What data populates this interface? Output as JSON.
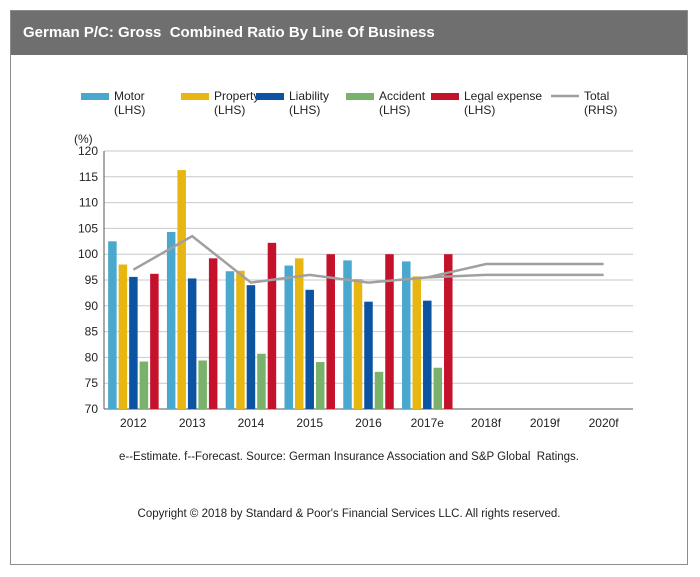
{
  "header": {
    "title": "German P/C: Gross  Combined Ratio By Line Of Business"
  },
  "colors": {
    "header_bg": "#6f6f6f",
    "motor": "#4aa8cf",
    "property": "#e8b611",
    "liability": "#0c54a2",
    "accident": "#79b26a",
    "legal": "#c4112c",
    "total": "#a0a0a0"
  },
  "chart_data": {
    "type": "bar",
    "ylabel": "(%)",
    "ylim": [
      70,
      120
    ],
    "yticks": [
      70,
      75,
      80,
      85,
      90,
      95,
      100,
      105,
      110,
      115,
      120
    ],
    "grid": true,
    "legend_position": "top",
    "categories": [
      "2012",
      "2013",
      "2014",
      "2015",
      "2016",
      "2017e",
      "2018f",
      "2019f",
      "2020f"
    ],
    "series": [
      {
        "name": "Motor",
        "axis": "(LHS)",
        "type": "bar",
        "color": "#4aa8cf",
        "values": [
          102.5,
          104.3,
          96.7,
          97.8,
          98.8,
          98.6,
          null,
          null,
          null
        ]
      },
      {
        "name": "Property",
        "axis": "(LHS)",
        "type": "bar",
        "color": "#e8b611",
        "values": [
          98.0,
          116.3,
          96.8,
          99.2,
          95.2,
          95.7,
          null,
          null,
          null
        ]
      },
      {
        "name": "Liability",
        "axis": "(LHS)",
        "type": "bar",
        "color": "#0c54a2",
        "values": [
          95.6,
          95.3,
          94.0,
          93.1,
          90.8,
          91.0,
          null,
          null,
          null
        ]
      },
      {
        "name": "Accident",
        "axis": "(LHS)",
        "type": "bar",
        "color": "#79b26a",
        "values": [
          79.2,
          79.4,
          80.7,
          79.1,
          77.2,
          78.0,
          null,
          null,
          null
        ]
      },
      {
        "name": "Legal expense",
        "axis": "(LHS)",
        "type": "bar",
        "color": "#c4112c",
        "values": [
          96.2,
          99.2,
          102.2,
          100.0,
          100.0,
          100.0,
          null,
          null,
          null
        ]
      },
      {
        "name": "Total",
        "axis": "(RHS)",
        "type": "line",
        "color": "#a0a0a0",
        "values": [
          97.0,
          103.5,
          94.5,
          96.0,
          94.5,
          95.5,
          98.1,
          98.1,
          98.1
        ]
      },
      {
        "name": "",
        "type": "line",
        "color": "#a0a0a0",
        "values": [
          null,
          null,
          null,
          null,
          null,
          95.5,
          96.0,
          96.0,
          96.0
        ]
      }
    ],
    "source": "e--Estimate. f--Forecast. Source: German Insurance Association and S&P Global  Ratings.",
    "copyright": "Copyright © 2018 by Standard & Poor's Financial Services LLC. All rights reserved."
  }
}
